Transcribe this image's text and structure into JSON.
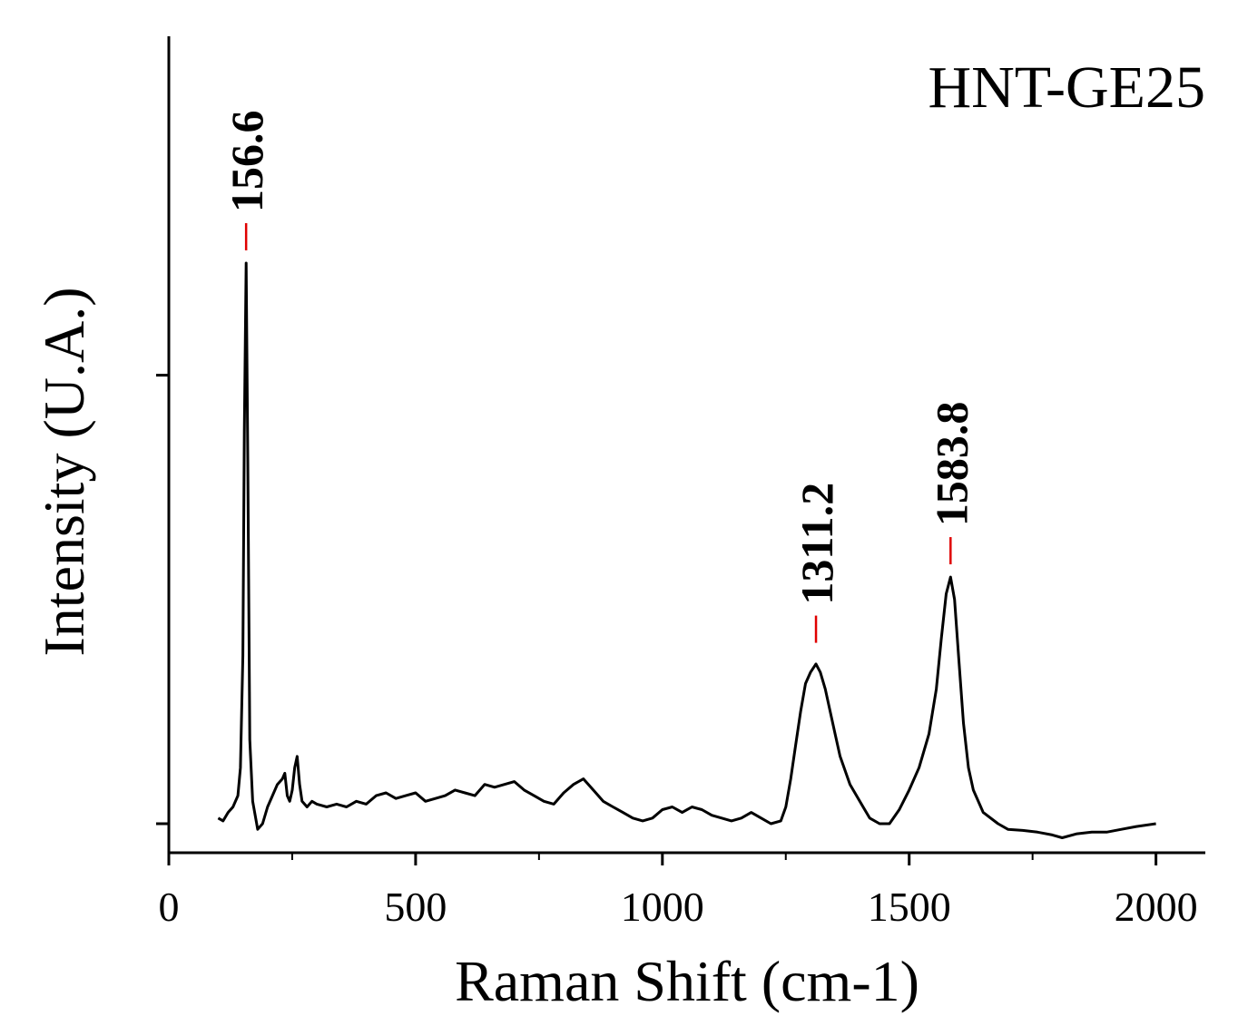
{
  "chart_data": {
    "type": "line",
    "panel_label": "HNT-GE25",
    "xlabel": "Raman Shift (cm-1)",
    "ylabel": "Intensity (U.A.)",
    "xlim": [
      0,
      2100
    ],
    "ylim": [
      -0.03,
      1.0
    ],
    "x_ticks": [
      0,
      500,
      1000,
      1500,
      2000
    ],
    "x_tick_labels": [
      "0",
      "500",
      "1000",
      "1500",
      "2000"
    ],
    "y_ticks": [
      0,
      0.8
    ],
    "grid": false,
    "line_color": "#000000",
    "marker_color": "#e00000",
    "peaks": [
      {
        "x": 156.6,
        "label": "156.6",
        "y": 1.0
      },
      {
        "x": 1311.2,
        "label": "1311.2",
        "y": 0.3
      },
      {
        "x": 1583.8,
        "label": "1583.8",
        "y": 0.44
      }
    ],
    "series": [
      {
        "x": [
          100,
          110,
          120,
          130,
          140,
          145,
          150,
          153,
          156.6,
          160,
          164,
          170,
          180,
          190,
          200,
          210,
          220,
          230,
          235,
          240,
          245,
          250,
          255,
          260,
          265,
          270,
          280,
          290,
          300,
          320,
          340,
          360,
          380,
          400,
          420,
          440,
          460,
          480,
          500,
          520,
          540,
          560,
          580,
          600,
          620,
          640,
          660,
          680,
          700,
          720,
          740,
          760,
          780,
          800,
          820,
          840,
          860,
          880,
          900,
          920,
          940,
          960,
          980,
          1000,
          1020,
          1040,
          1060,
          1080,
          1100,
          1120,
          1140,
          1160,
          1180,
          1200,
          1220,
          1240,
          1250,
          1260,
          1270,
          1280,
          1290,
          1300,
          1311.2,
          1320,
          1330,
          1340,
          1350,
          1360,
          1380,
          1400,
          1420,
          1440,
          1460,
          1480,
          1500,
          1520,
          1540,
          1555,
          1565,
          1575,
          1583.8,
          1592,
          1600,
          1610,
          1620,
          1630,
          1650,
          1680,
          1700,
          1730,
          1760,
          1790,
          1810,
          1840,
          1870,
          1900,
          1930,
          1960,
          2000
        ],
        "y": [
          0.01,
          0.005,
          0.02,
          0.03,
          0.05,
          0.1,
          0.3,
          0.7,
          1.0,
          0.65,
          0.15,
          0.04,
          -0.01,
          0.0,
          0.03,
          0.05,
          0.07,
          0.08,
          0.09,
          0.05,
          0.04,
          0.06,
          0.1,
          0.12,
          0.07,
          0.04,
          0.03,
          0.04,
          0.035,
          0.03,
          0.035,
          0.03,
          0.04,
          0.035,
          0.05,
          0.055,
          0.045,
          0.05,
          0.055,
          0.04,
          0.045,
          0.05,
          0.06,
          0.055,
          0.05,
          0.07,
          0.065,
          0.07,
          0.075,
          0.06,
          0.05,
          0.04,
          0.035,
          0.055,
          0.07,
          0.08,
          0.06,
          0.04,
          0.03,
          0.02,
          0.01,
          0.005,
          0.01,
          0.025,
          0.03,
          0.02,
          0.03,
          0.025,
          0.015,
          0.01,
          0.005,
          0.01,
          0.02,
          0.01,
          0.0,
          0.005,
          0.03,
          0.08,
          0.14,
          0.2,
          0.25,
          0.27,
          0.285,
          0.27,
          0.24,
          0.2,
          0.16,
          0.12,
          0.07,
          0.04,
          0.01,
          0.0,
          0.0,
          0.025,
          0.06,
          0.1,
          0.16,
          0.24,
          0.33,
          0.41,
          0.44,
          0.4,
          0.3,
          0.18,
          0.1,
          0.06,
          0.02,
          0.0,
          -0.01,
          -0.012,
          -0.015,
          -0.02,
          -0.025,
          -0.018,
          -0.015,
          -0.015,
          -0.01,
          -0.005,
          0.0
        ]
      }
    ]
  }
}
